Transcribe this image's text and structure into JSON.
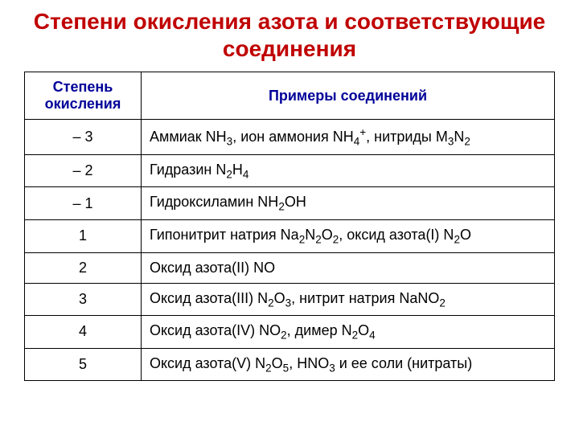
{
  "title": "Степени окисления азота и соответствующие соединения",
  "header": {
    "col1": "Степень окисления",
    "col2": "Примеры соединений"
  },
  "rows": [
    {
      "ox": "– 3",
      "ex": "Аммиак NH<sub>3</sub>, ион аммония NH<sub>4</sub><sup>+</sup>, нитриды M<sub>3</sub>N<sub>2</sub>"
    },
    {
      "ox": "– 2",
      "ex": "Гидразин N<sub>2</sub>H<sub>4</sub>"
    },
    {
      "ox": "– 1",
      "ex": "Гидроксиламин NH<sub>2</sub>OH"
    },
    {
      "ox": "1",
      "ex": "Гипонитрит натрия Na<sub>2</sub>N<sub>2</sub>O<sub>2</sub>, оксид азота(I) N<sub>2</sub>O"
    },
    {
      "ox": "2",
      "ex": "Оксид азота(II) NO"
    },
    {
      "ox": "3",
      "ex": "Оксид азота(III) N<sub>2</sub>O<sub>3</sub>, нитрит натрия NaNO<sub>2</sub>"
    },
    {
      "ox": "4",
      "ex": "Оксид азота(IV) NO<sub>2</sub>, димер N<sub>2</sub>O<sub>4</sub>"
    },
    {
      "ox": "5",
      "ex": "Оксид азота(V) N<sub>2</sub>O<sub>5</sub>, HNO<sub>3</sub> и ее соли (нитраты)"
    }
  ],
  "colors": {
    "title": "#c00000",
    "header": "#000099",
    "border": "#000000",
    "background": "#ffffff"
  },
  "typography": {
    "title_fontsize": 28,
    "cell_fontsize": 18,
    "font_family": "Arial"
  }
}
